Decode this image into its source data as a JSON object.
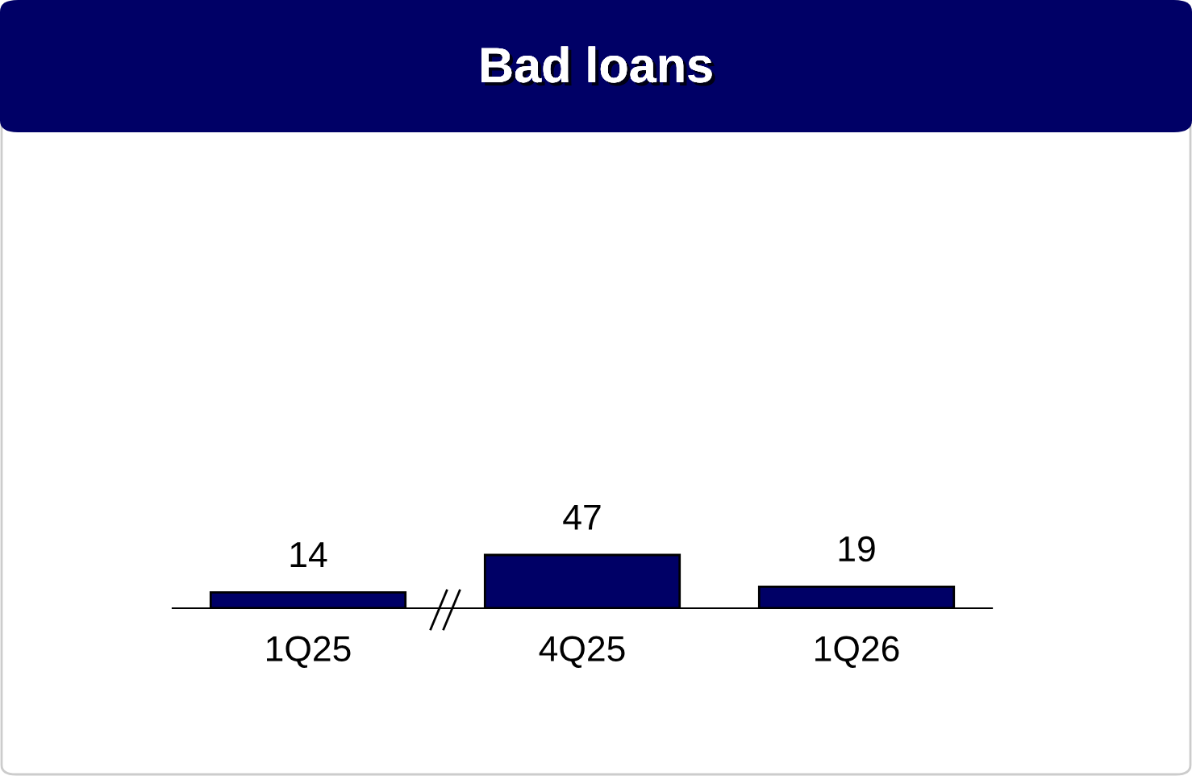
{
  "chart_data": {
    "type": "bar",
    "title": "Bad loans",
    "categories": [
      "1Q25",
      "4Q25",
      "1Q26"
    ],
    "values": [
      14,
      47,
      19
    ],
    "color": "#000066",
    "data_labels": true,
    "grid": false,
    "legend": false
  }
}
